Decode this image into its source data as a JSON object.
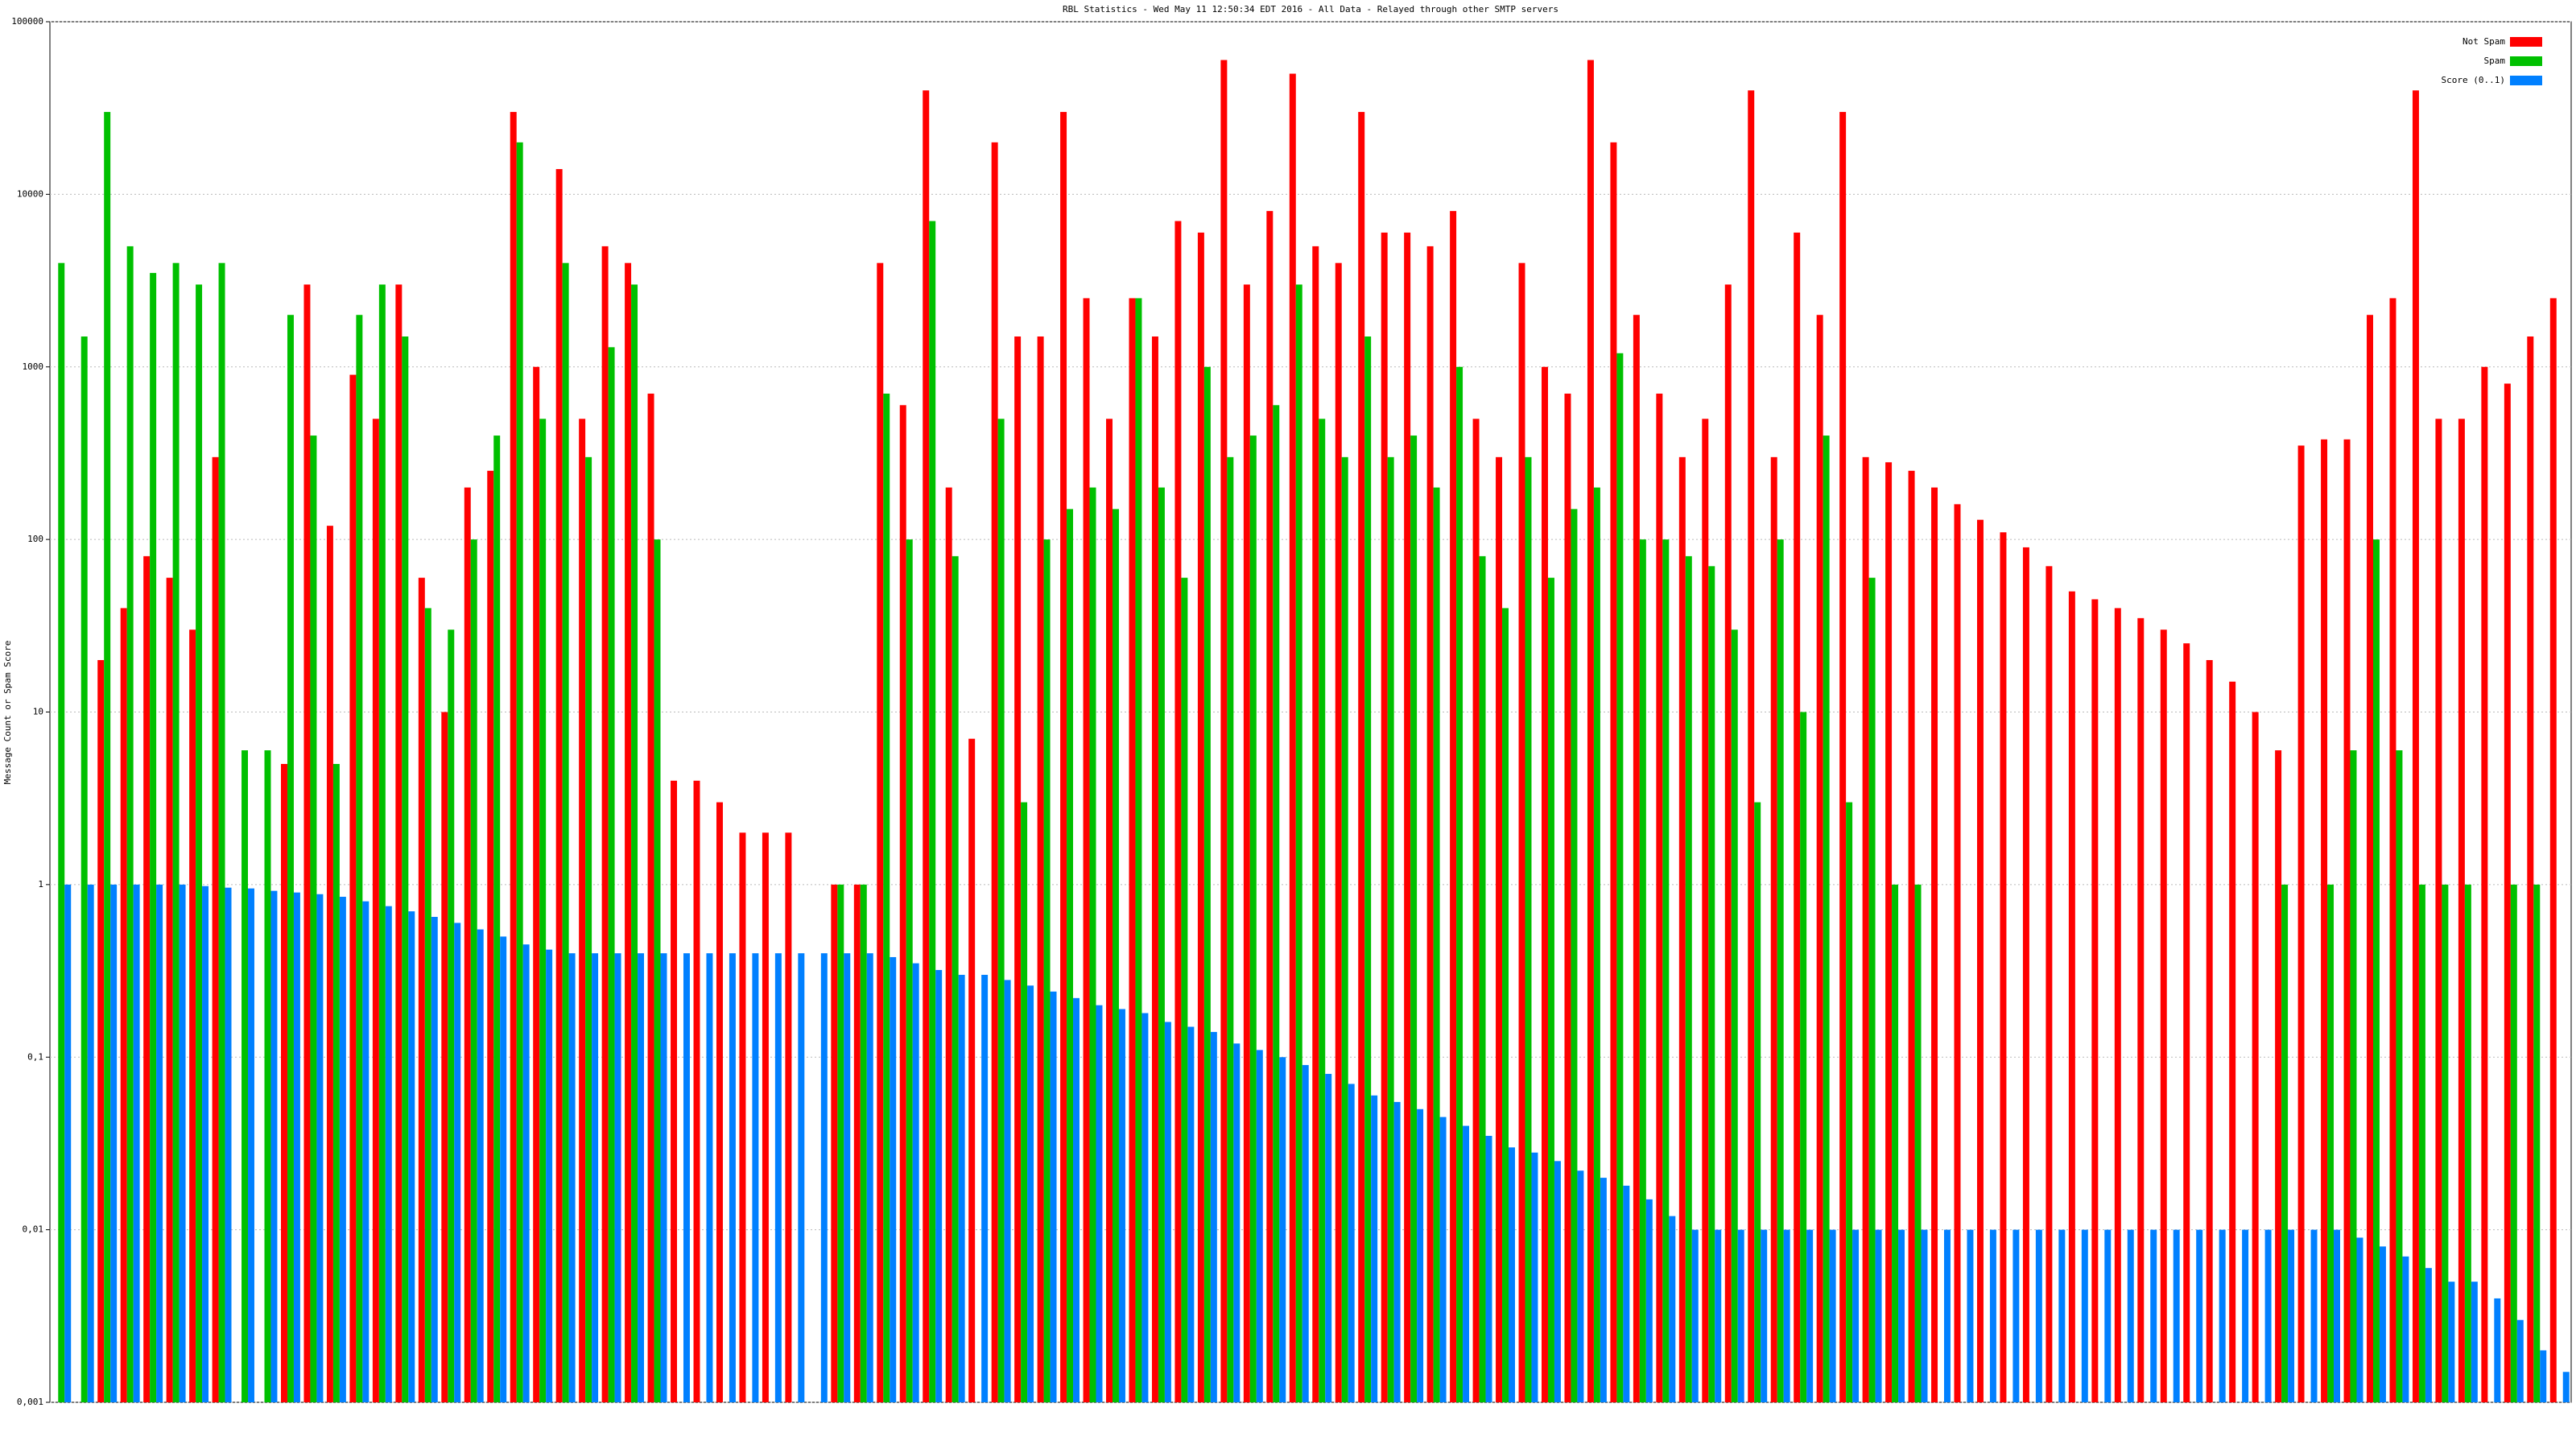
{
  "chart_data": {
    "type": "bar",
    "title": "RBL Statistics - Wed May 11 12:50:34 EDT 2016 - All Data - Relayed through other SMTP servers",
    "y_label": "Message Count or Spam Score",
    "log_scale": true,
    "grid": true,
    "legend_position": "upper right",
    "ylim": [
      0.001,
      100000
    ],
    "yticks": [
      {
        "value": 0.001,
        "label": "0,001"
      },
      {
        "value": 0.01,
        "label": "0,01"
      },
      {
        "value": 0.1,
        "label": "0,1"
      },
      1,
      10,
      100,
      1000,
      10000,
      100000
    ],
    "series": [
      {
        "name": "Not Spam",
        "color": "#ff0000",
        "values": [
          null,
          null,
          20,
          40,
          80,
          60,
          30,
          300,
          null,
          null,
          5,
          3000,
          120,
          900,
          500,
          3000,
          60,
          10,
          200,
          250,
          30000,
          1000,
          14000,
          500,
          5000,
          4000,
          700,
          4,
          4,
          3,
          2,
          2,
          2,
          null,
          1,
          1,
          4000,
          600,
          40000,
          200,
          7,
          20000,
          1500,
          1500,
          30000,
          2500,
          500,
          2500,
          1500,
          7000,
          6000,
          60000,
          3000,
          8000,
          50000,
          5000,
          4000,
          30000,
          6000,
          6000,
          5000,
          8000,
          500,
          300,
          4000,
          1000,
          700,
          60000,
          20000,
          2000,
          700,
          300,
          500,
          3000,
          40000,
          300,
          6000,
          2000,
          30000,
          300,
          280,
          250,
          200,
          160,
          130,
          110,
          90,
          70,
          50,
          45,
          40,
          35,
          30,
          25,
          20,
          15,
          10,
          6,
          350,
          380,
          380,
          2000,
          2500,
          40000,
          500,
          500,
          1000,
          800,
          1500,
          2500
        ]
      },
      {
        "name": "Spam",
        "color": "#00c000",
        "values": [
          4000,
          1500,
          30000,
          5000,
          3500,
          4000,
          3000,
          4000,
          6,
          6,
          2000,
          400,
          5,
          2000,
          3000,
          1500,
          40,
          30,
          100,
          400,
          20000,
          500,
          4000,
          300,
          1300,
          3000,
          100,
          null,
          null,
          null,
          null,
          null,
          null,
          null,
          1,
          1,
          700,
          100,
          7000,
          80,
          null,
          500,
          3,
          100,
          150,
          200,
          150,
          2500,
          200,
          60,
          1000,
          300,
          400,
          600,
          3000,
          500,
          300,
          1500,
          300,
          400,
          200,
          1000,
          80,
          40,
          300,
          60,
          150,
          200,
          1200,
          100,
          100,
          80,
          70,
          30,
          3,
          100,
          10,
          400,
          3,
          60,
          1,
          1,
          null,
          null,
          null,
          null,
          null,
          null,
          null,
          null,
          null,
          null,
          null,
          null,
          null,
          null,
          null,
          1,
          null,
          1,
          6,
          100,
          6,
          1,
          1,
          1,
          null,
          1,
          1,
          null
        ]
      },
      {
        "name": "Score (0..1)",
        "color": "#0080ff",
        "values": [
          1,
          1,
          1,
          1,
          1,
          1,
          0.98,
          0.96,
          0.95,
          0.92,
          0.9,
          0.88,
          0.85,
          0.8,
          0.75,
          0.7,
          0.65,
          0.6,
          0.55,
          0.5,
          0.45,
          0.42,
          0.4,
          0.4,
          0.4,
          0.4,
          0.4,
          0.4,
          0.4,
          0.4,
          0.4,
          0.4,
          0.4,
          0.4,
          0.4,
          0.4,
          0.38,
          0.35,
          0.32,
          0.3,
          0.3,
          0.28,
          0.26,
          0.24,
          0.22,
          0.2,
          0.19,
          0.18,
          0.16,
          0.15,
          0.14,
          0.12,
          0.11,
          0.1,
          0.09,
          0.08,
          0.07,
          0.06,
          0.055,
          0.05,
          0.045,
          0.04,
          0.035,
          0.03,
          0.028,
          0.025,
          0.022,
          0.02,
          0.018,
          0.015,
          0.012,
          0.01,
          0.01,
          0.01,
          0.01,
          0.01,
          0.01,
          0.01,
          0.01,
          0.01,
          0.01,
          0.01,
          0.01,
          0.01,
          0.01,
          0.01,
          0.01,
          0.01,
          0.01,
          0.01,
          0.01,
          0.01,
          0.01,
          0.01,
          0.01,
          0.01,
          0.01,
          0.01,
          0.01,
          0.01,
          0.009,
          0.008,
          0.007,
          0.006,
          0.005,
          0.005,
          0.004,
          0.003,
          0.002,
          0.0015
        ]
      }
    ]
  }
}
